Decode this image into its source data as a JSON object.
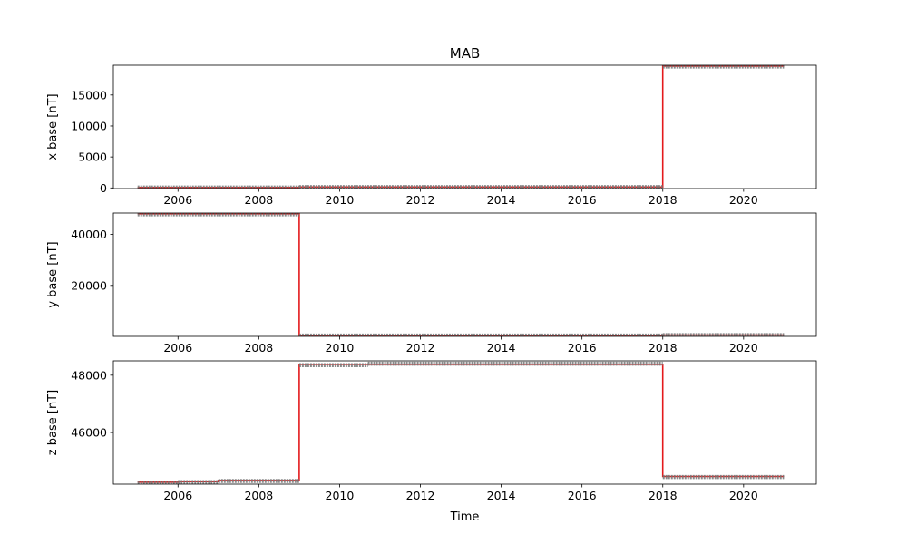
{
  "chart_data": {
    "type": "line",
    "title": "MAB",
    "xlabel": "Time",
    "xlim": [
      2004.4,
      2021.8
    ],
    "xticks": [
      "2006",
      "2008",
      "2010",
      "2012",
      "2014",
      "2016",
      "2018",
      "2020"
    ],
    "colors": {
      "base_line": "#e41a1c",
      "scatter": "#777777"
    },
    "panels": [
      {
        "ylabel": "x base [nT]",
        "ylim": [
          -100,
          19800
        ],
        "yticks": [
          "0",
          "5000",
          "10000",
          "15000"
        ],
        "series": [
          {
            "type": "line",
            "color": "#e41a1c",
            "x": [
              2005.0,
              2009.0,
              2009.0,
              2018.0,
              2018.0,
              2021.0
            ],
            "y": [
              80,
              80,
              150,
              150,
              19650,
              19650
            ]
          },
          {
            "type": "scatter",
            "color": "#777777",
            "segments": [
              {
                "x": [
                  2005.0,
                  2009.0
                ],
                "y": 70
              },
              {
                "x": [
                  2009.0,
                  2018.0
                ],
                "y": 140
              },
              {
                "x": [
                  2018.0,
                  2021.0
                ],
                "y": 19600
              }
            ]
          }
        ]
      },
      {
        "ylabel": "y base [nT]",
        "ylim": [
          0,
          48400
        ],
        "yticks": [
          "20000",
          "40000"
        ],
        "series": [
          {
            "type": "line",
            "color": "#e41a1c",
            "x": [
              2005.0,
              2009.0,
              2009.0,
              2018.0,
              2018.0,
              2021.0
            ],
            "y": [
              48100,
              48100,
              350,
              350,
              550,
              550
            ]
          },
          {
            "type": "scatter",
            "color": "#777777",
            "segments": [
              {
                "x": [
                  2005.0,
                  2009.0
                ],
                "y": 47900
              },
              {
                "x": [
                  2009.0,
                  2018.0
                ],
                "y": 300
              },
              {
                "x": [
                  2018.0,
                  2021.0
                ],
                "y": 500
              }
            ]
          }
        ]
      },
      {
        "ylabel": "z base [nT]",
        "ylim": [
          44200,
          48500
        ],
        "yticks": [
          "46000",
          "48000"
        ],
        "series": [
          {
            "type": "line",
            "color": "#e41a1c",
            "x": [
              2005.0,
              2006.0,
              2006.0,
              2007.0,
              2007.0,
              2009.0,
              2009.0,
              2018.0,
              2018.0,
              2021.0
            ],
            "y": [
              44270,
              44270,
              44290,
              44290,
              44330,
              44330,
              48380,
              48380,
              44470,
              44470
            ]
          },
          {
            "type": "scatter",
            "color": "#777777",
            "segments": [
              {
                "x": [
                  2005.0,
                  2006.0
                ],
                "y": 44250
              },
              {
                "x": [
                  2006.0,
                  2007.0
                ],
                "y": 44270
              },
              {
                "x": [
                  2007.0,
                  2009.0
                ],
                "y": 44310
              },
              {
                "x": [
                  2009.0,
                  2010.7
                ],
                "y": 48350
              },
              {
                "x": [
                  2010.7,
                  2018.0
                ],
                "y": 48400
              },
              {
                "x": [
                  2018.0,
                  2021.0
                ],
                "y": 44450
              }
            ]
          }
        ]
      }
    ]
  }
}
